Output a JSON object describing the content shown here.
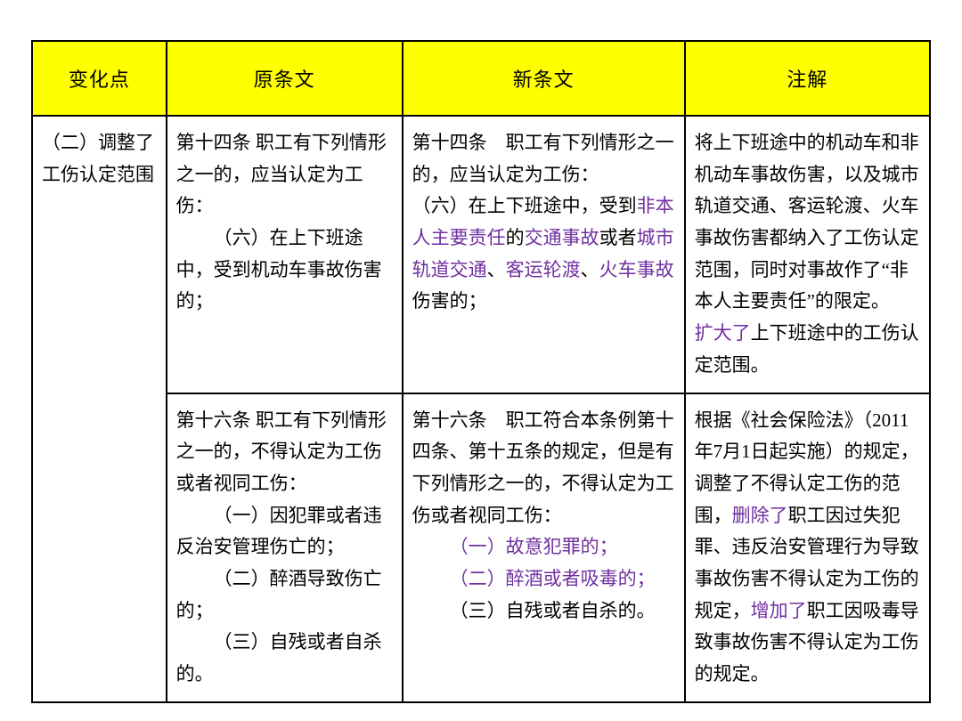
{
  "colors": {
    "header_bg": "#ffff00",
    "border": "#000000",
    "text": "#000000",
    "highlight": "#7030a0"
  },
  "fontsize": {
    "header": 22,
    "body": 21
  },
  "table": {
    "headers": [
      "变化点",
      "原条文",
      "新条文",
      "注解"
    ],
    "rows": [
      {
        "change": "（二）调整了工伤认定范围",
        "original": {
          "p1": "第十四条 职工有下列情形之一的，应当认定为工伤：",
          "p2": "（六）在上下班途中，受到机动车事故伤害的；"
        },
        "new": {
          "p1": "第十四条　职工有下列情形之一的，应当认定为工伤：",
          "p2_a": "（六）在上下班途中，受到",
          "p2_b": "非本人主要责任",
          "p2_c": "的",
          "p2_d": "交通事故",
          "p2_e": "或者",
          "p2_f": "城市轨道交通",
          "p2_g": "、",
          "p2_h": "客运轮渡",
          "p2_i": "、",
          "p2_j": "火车事故",
          "p2_k": "伤害的；"
        },
        "note": {
          "p1": "将上下班途中的机动车和非机动车事故伤害，以及城市轨道交通、客运轮渡、火车事故伤害都纳入了工伤认定范围，同时对事故作了“非本人主要责任”的限定。",
          "p2_a": "扩大了",
          "p2_b": "上下班途中的工伤认定范围。"
        }
      },
      {
        "change": "",
        "original": {
          "p1": "第十六条 职工有下列情形之一的，不得认定为工伤或者视同工伤：",
          "p2": "（一）因犯罪或者违反治安管理伤亡的；",
          "p3": "（二）醉酒导致伤亡的；",
          "p4": "（三）自残或者自杀的。"
        },
        "new": {
          "p1": "第十六条　职工符合本条例第十四条、第十五条的规定，但是有下列情形之一的，不得认定为工伤或者视同工伤：",
          "p2": "（一）故意犯罪的；",
          "p3": "（二）醉酒或者吸毒的；",
          "p4": "（三）自残或者自杀的。"
        },
        "note": {
          "p1_a": "根据《社会保险法》（2011年7月1日起实施）的规定，调整了不得认定工伤的范围，",
          "p1_b": "删除了",
          "p1_c": "职工因过失犯罪、违反治安管理行为导致事故伤害不得认定为工伤的规定，",
          "p1_d": "增加了",
          "p1_e": "职工因吸毒导致事故伤害不得认定为工伤的规定。"
        }
      }
    ]
  }
}
